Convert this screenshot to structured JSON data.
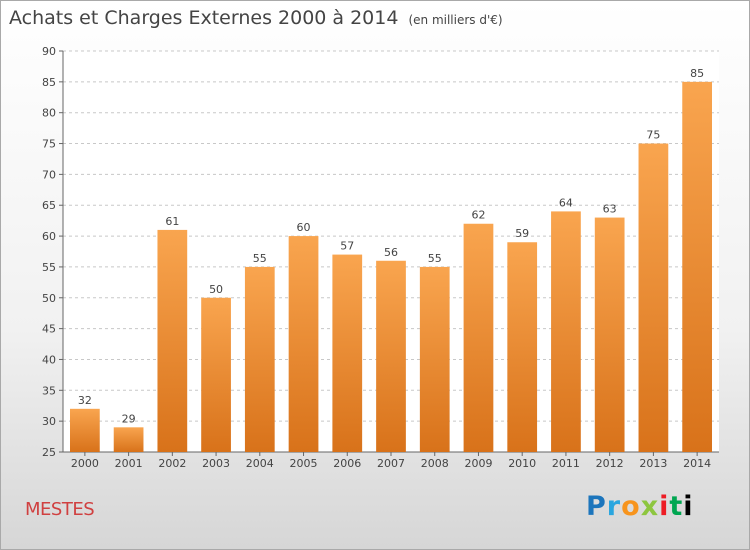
{
  "chart_data": {
    "type": "bar",
    "title": "Achats et Charges Externes 2000 à 2014",
    "subtitle": "(en milliers d'€)",
    "categories": [
      "2000",
      "2001",
      "2002",
      "2003",
      "2004",
      "2005",
      "2006",
      "2007",
      "2008",
      "2009",
      "2010",
      "2011",
      "2012",
      "2013",
      "2014"
    ],
    "values": [
      32,
      29,
      61,
      50,
      55,
      60,
      57,
      56,
      55,
      62,
      59,
      64,
      63,
      75,
      85
    ],
    "ylim": [
      25,
      90
    ],
    "yticks": [
      25,
      30,
      35,
      40,
      45,
      50,
      55,
      60,
      65,
      70,
      75,
      80,
      85,
      90
    ],
    "grid": true,
    "colors": {
      "bar_top": "#f9a54f",
      "bar_bottom": "#d8721a",
      "grid": "#c8c8c8"
    }
  },
  "footer": {
    "city": "MESTES",
    "logo": [
      "P",
      "r",
      "o",
      "x",
      "i",
      "t",
      "i"
    ]
  }
}
